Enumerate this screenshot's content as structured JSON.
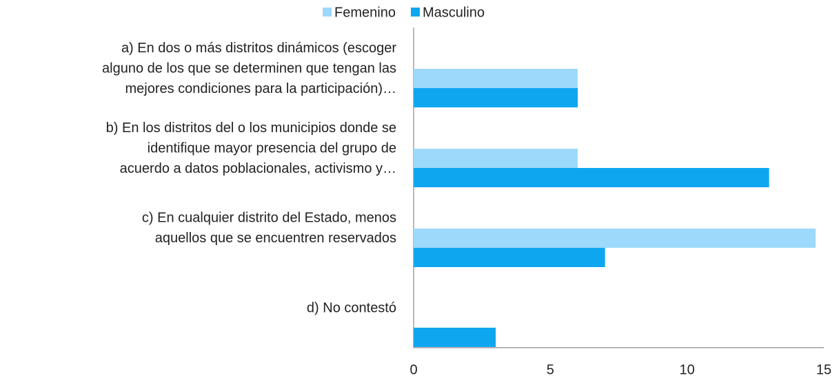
{
  "chart_data": {
    "type": "hbar",
    "categories": [
      [
        "a) En dos o más distritos dinámicos (escoger",
        "alguno de los que se determinen que tengan las",
        "mejores condiciones para la participación)…"
      ],
      [
        "b) En los distritos del o los municipios donde se",
        "identifique mayor presencia del grupo de",
        "acuerdo a datos poblacionales, activismo y…"
      ],
      [
        "c) En cualquier distrito del Estado, menos",
        "aquellos que se encuentren reservados"
      ],
      [
        "d) No contestó"
      ]
    ],
    "series": [
      {
        "name": "Femenino",
        "color": "#9dd9fb",
        "values": [
          6,
          6,
          14.7,
          0
        ]
      },
      {
        "name": "Masculino",
        "color": "#0fa6f0",
        "values": [
          6,
          13,
          7,
          3
        ]
      }
    ],
    "xlim": [
      0,
      15
    ],
    "xticks": [
      0,
      5,
      10,
      15
    ],
    "legend": "top"
  }
}
